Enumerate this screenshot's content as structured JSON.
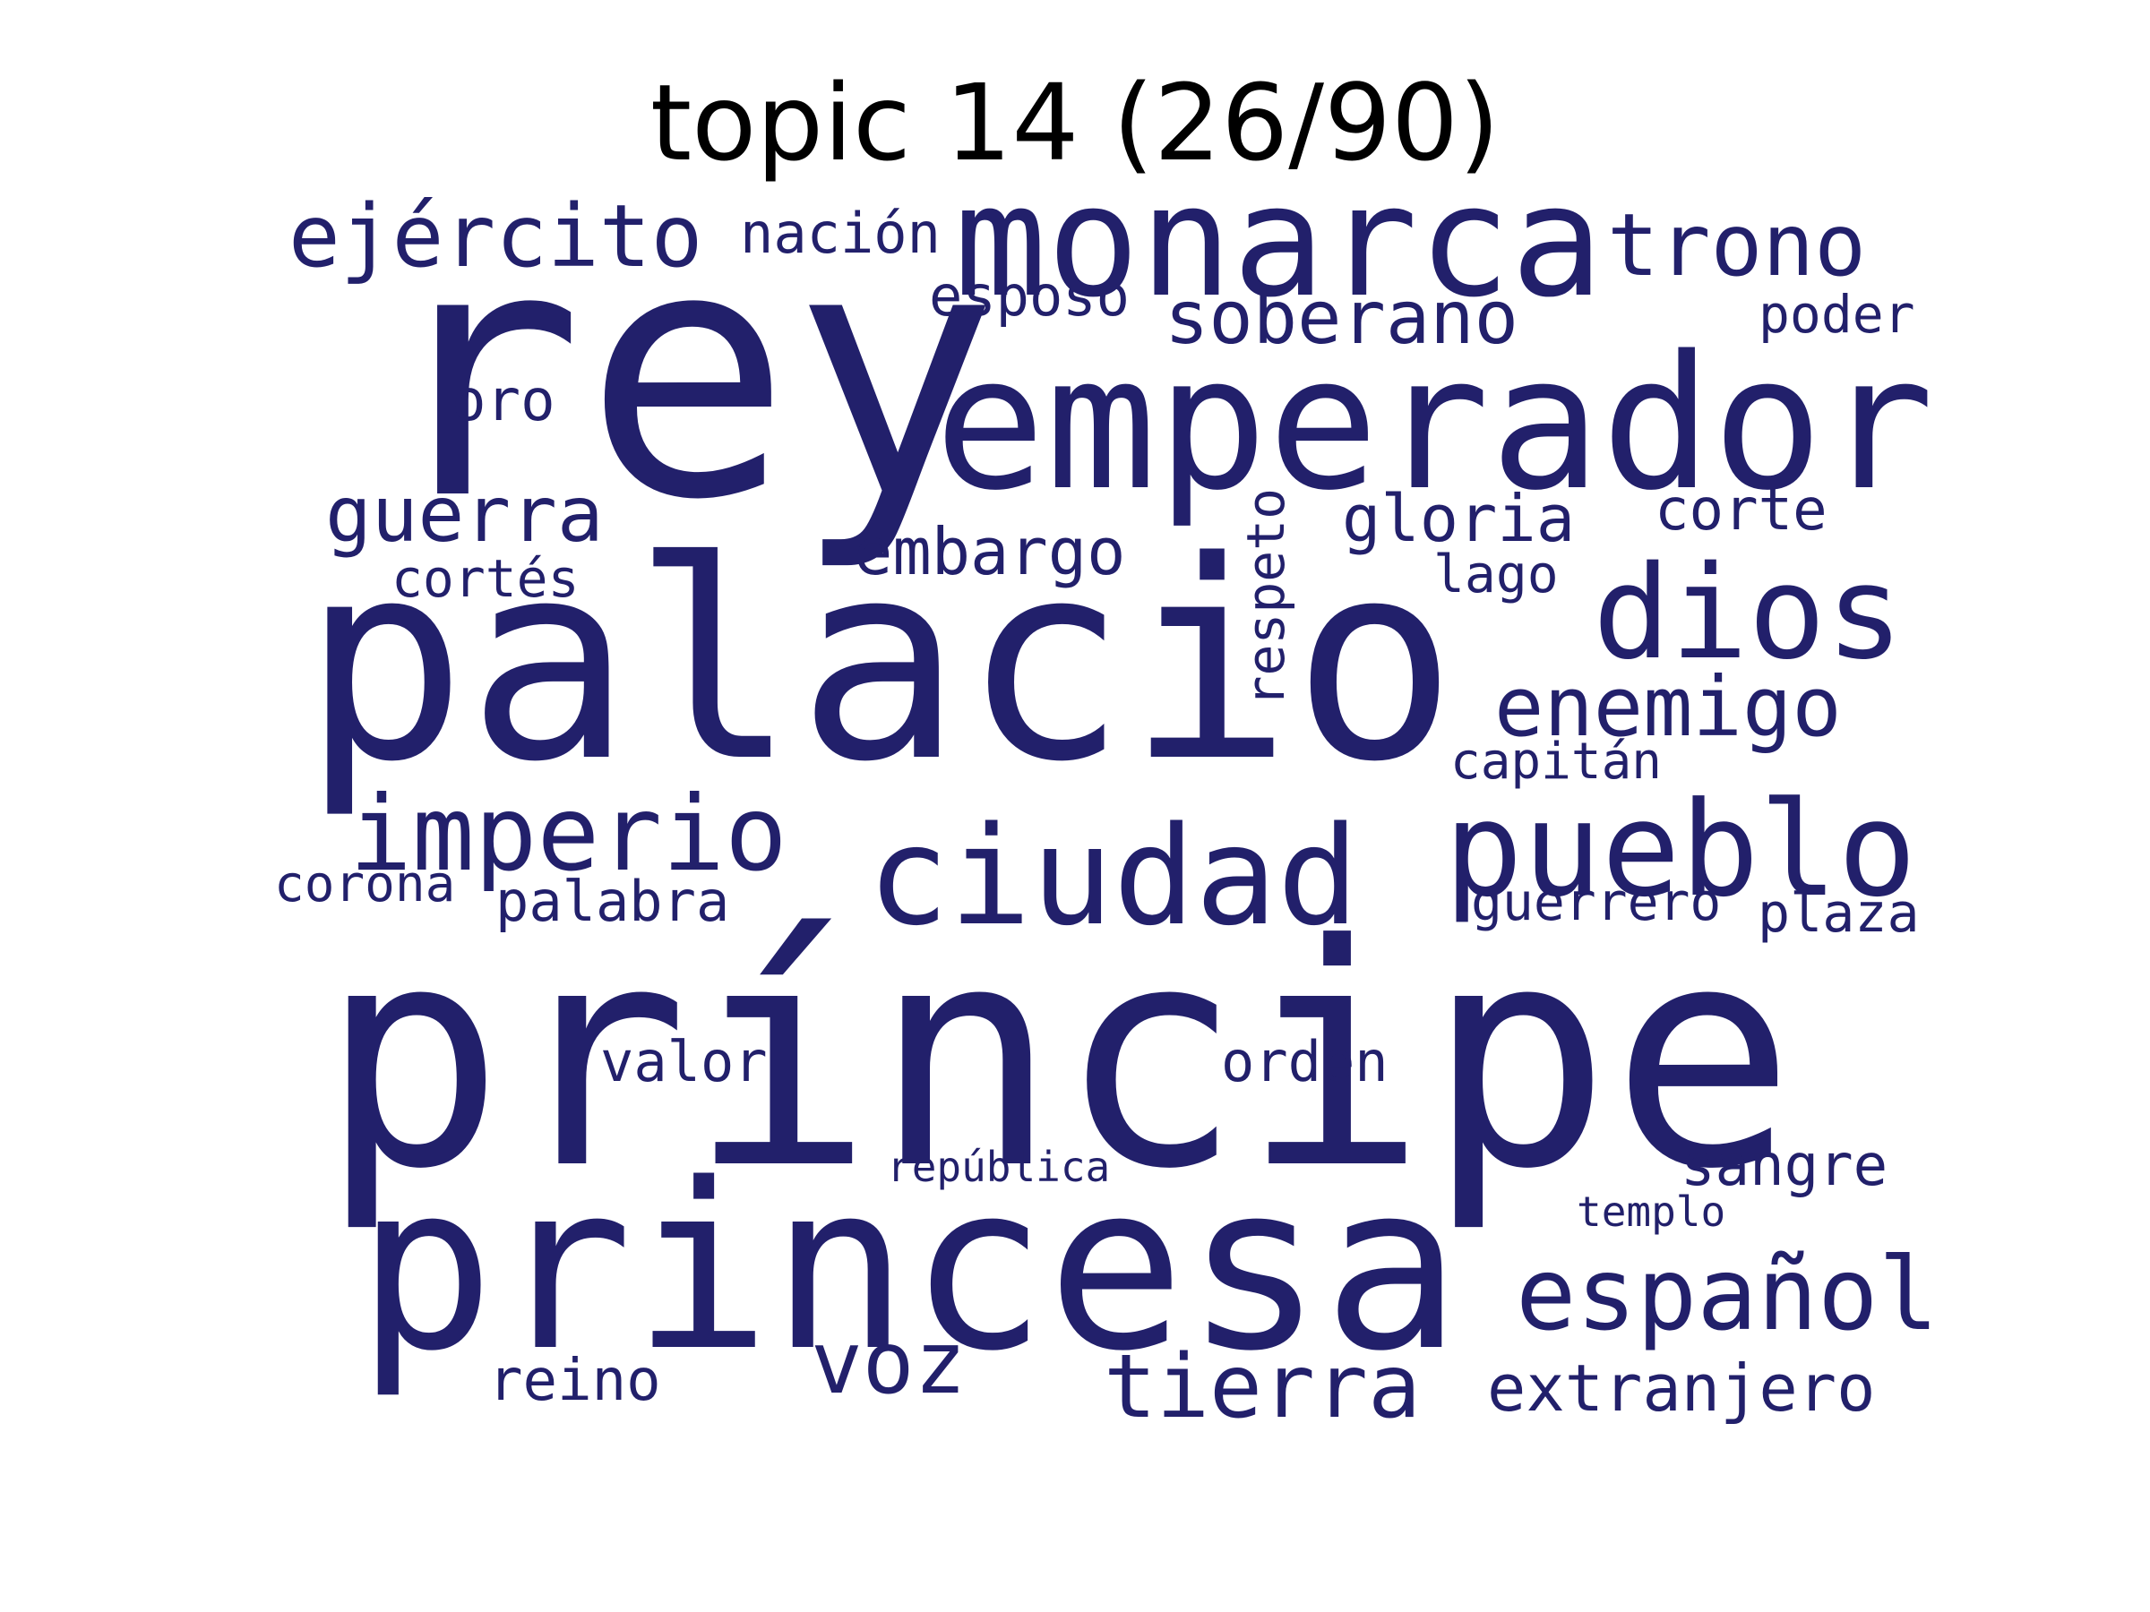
{
  "title": "topic 14 (26/90)",
  "colors": {
    "text": "#22206b",
    "title": "#000000",
    "background": "#ffffff"
  },
  "words": {
    "principe": "príncipe",
    "palacio": "palacio",
    "rey": "rey",
    "princesa": "princesa",
    "emperador": "emperador",
    "monarca": "monarca",
    "ciudad": "ciudad",
    "pueblo": "pueblo",
    "dios": "dios",
    "imperio": "imperio",
    "espanol": "español",
    "tierra": "tierra",
    "ejercito": "ejército",
    "trono": "trono",
    "soberano": "soberano",
    "enemigo": "enemigo",
    "guerra": "guerra",
    "voz": "voz",
    "extranjero": "extranjero",
    "embargo": "embargo",
    "gloria": "gloria",
    "nacion": "nación",
    "esposo": "esposo",
    "poder": "poder",
    "oro": "oro",
    "corte": "corte",
    "respeto": "respeto",
    "cortes": "cortés",
    "lago": "lago",
    "capitan": "capitán",
    "corona": "corona",
    "palabra": "palabra",
    "guerrero": "guerrero",
    "plaza": "plaza",
    "valor": "valor",
    "orden": "orden",
    "sangre": "sangre",
    "republica": "república",
    "templo": "templo",
    "reino": "reino"
  }
}
